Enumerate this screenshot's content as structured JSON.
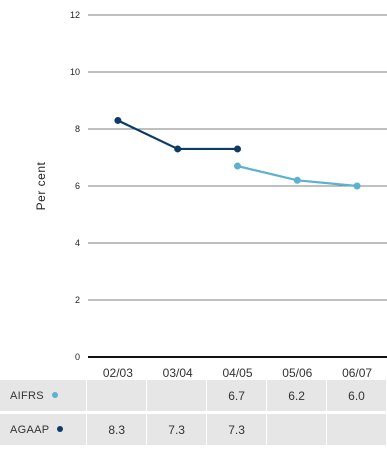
{
  "chart_data": {
    "type": "line",
    "categories": [
      "02/03",
      "03/04",
      "04/05",
      "05/06",
      "06/07"
    ],
    "ylabel": "Per cent",
    "ylim": [
      0,
      12
    ],
    "yticks": [
      0,
      2,
      4,
      6,
      8,
      10,
      12
    ],
    "grid": true,
    "series": [
      {
        "name": "AIFRS",
        "color": "#5bb1cf",
        "values": [
          null,
          null,
          6.7,
          6.2,
          6.0
        ]
      },
      {
        "name": "AGAAP",
        "color": "#0d3a66",
        "values": [
          8.3,
          7.3,
          7.3,
          null,
          null
        ]
      }
    ],
    "table": [
      {
        "label": "AIFRS",
        "cells": [
          "",
          "",
          "6.7",
          "6.2",
          "6.0"
        ]
      },
      {
        "label": "AGAAP",
        "cells": [
          "8.3",
          "7.3",
          "7.3",
          "",
          ""
        ]
      }
    ]
  }
}
